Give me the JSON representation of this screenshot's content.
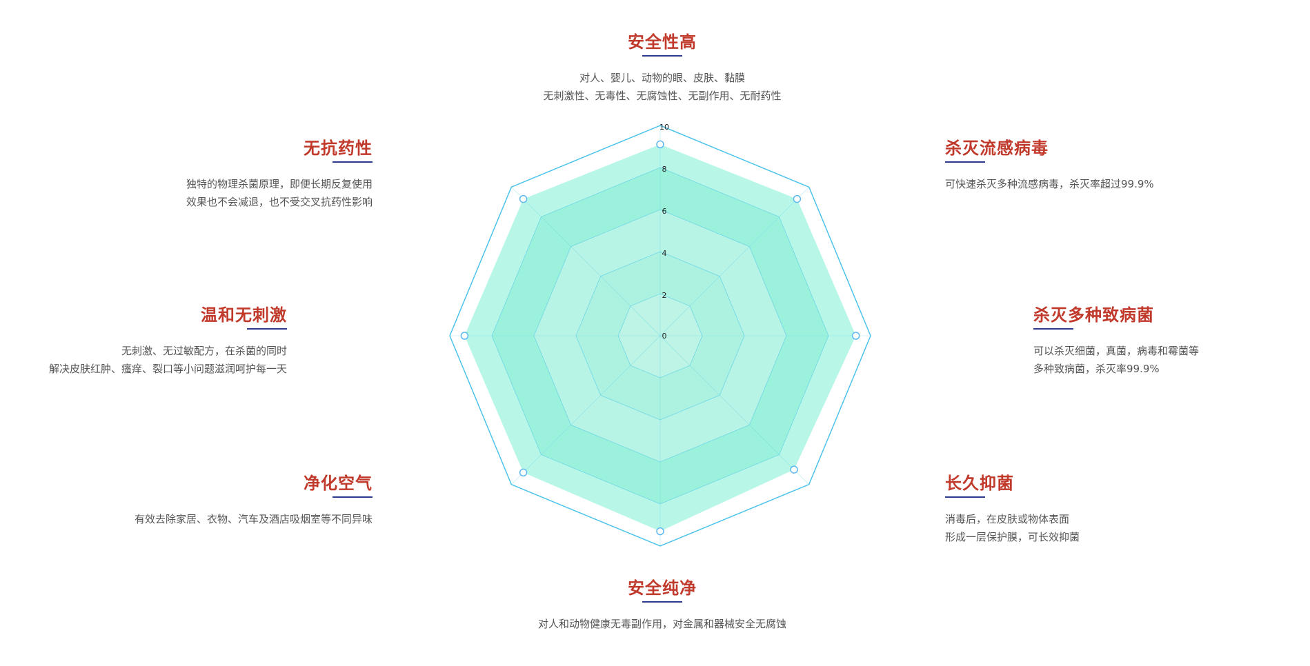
{
  "features": [
    {
      "key": "top",
      "title": "安全性高",
      "lines": [
        "对人、婴儿、动物的眼、皮肤、黏膜",
        "无刺激性、无毒性、无腐蚀性、无副作用、无耐药性"
      ]
    },
    {
      "key": "top-right",
      "title": "杀灭流感病毒",
      "lines": [
        "可快速杀灭多种流感病毒，杀灭率超过99.9%"
      ]
    },
    {
      "key": "right",
      "title": "杀灭多种致病菌",
      "lines": [
        "可以杀灭细菌，真菌，病毒和霉菌等",
        "多种致病菌，杀灭率99.9%"
      ]
    },
    {
      "key": "bottom-right",
      "title": "长久抑菌",
      "lines": [
        "消毒后，在皮肤或物体表面",
        "形成一层保护膜，可长效抑菌"
      ]
    },
    {
      "key": "bottom",
      "title": "安全纯净",
      "lines": [
        "对人和动物健康无毒副作用，对金属和器械安全无腐蚀"
      ]
    },
    {
      "key": "bottom-left",
      "title": "净化空气",
      "lines": [
        "有效去除家居、衣物、汽车及酒店吸烟室等不同异味"
      ]
    },
    {
      "key": "left",
      "title": "温和无刺激",
      "lines": [
        "无刺激、无过敏配方，在杀菌的同时",
        "解决皮肤红肿、瘙痒、裂口等小问题滋润呵护每一天"
      ]
    },
    {
      "key": "top-left",
      "title": "无抗药性",
      "lines": [
        "独特的物理杀菌原理，即便长期反复使用",
        "效果也不会减退，也不受交叉抗药性影响"
      ]
    }
  ],
  "chart_data": {
    "type": "radar",
    "axes": [
      "安全性高",
      "杀灭流感病毒",
      "杀灭多种致病菌",
      "长久抑菌",
      "安全纯净",
      "净化空气",
      "温和无刺激",
      "无抗药性"
    ],
    "tick_labels": [
      "0",
      "2",
      "4",
      "6",
      "8",
      "10"
    ],
    "rings": [
      0,
      2,
      4,
      6,
      8,
      10
    ],
    "rmax": 10,
    "values": [
      9.1,
      9.2,
      9.3,
      9.0,
      9.3,
      9.2,
      9.3,
      9.2
    ],
    "colors": {
      "fill": "#7ef0d6",
      "ring_fill_light": "#cdf7ec",
      "ring_fill_dark": "#a4f1de",
      "grid_line": "#5dd0e6",
      "outer_ring": "#4cc3ea",
      "marker_stroke": "#5bb8f0"
    }
  }
}
